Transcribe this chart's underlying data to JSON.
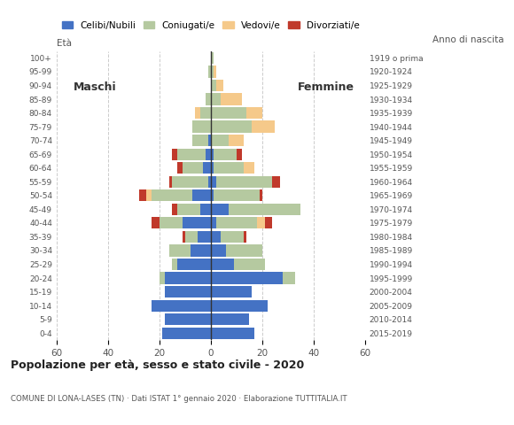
{
  "age_groups": [
    "0-4",
    "5-9",
    "10-14",
    "15-19",
    "20-24",
    "25-29",
    "30-34",
    "35-39",
    "40-44",
    "45-49",
    "50-54",
    "55-59",
    "60-64",
    "65-69",
    "70-74",
    "75-79",
    "80-84",
    "85-89",
    "90-94",
    "95-99",
    "100+"
  ],
  "birth_years": [
    "2015-2019",
    "2010-2014",
    "2005-2009",
    "2000-2004",
    "1995-1999",
    "1990-1994",
    "1985-1989",
    "1980-1984",
    "1975-1979",
    "1970-1974",
    "1965-1969",
    "1960-1964",
    "1955-1959",
    "1950-1954",
    "1945-1949",
    "1940-1944",
    "1935-1939",
    "1930-1934",
    "1925-1929",
    "1920-1924",
    "1919 o prima"
  ],
  "colors": {
    "celibe": "#4472c4",
    "coniugato": "#b5c9a0",
    "vedovo": "#f5c98a",
    "divorziato": "#c0392b"
  },
  "males": {
    "celibe": [
      19,
      18,
      23,
      18,
      18,
      13,
      8,
      5,
      11,
      4,
      7,
      1,
      3,
      2,
      1,
      0,
      0,
      0,
      0,
      0,
      0
    ],
    "coniugato": [
      0,
      0,
      0,
      0,
      2,
      2,
      8,
      5,
      9,
      9,
      16,
      14,
      8,
      11,
      6,
      7,
      4,
      2,
      0,
      1,
      0
    ],
    "vedovo": [
      0,
      0,
      0,
      0,
      0,
      0,
      0,
      0,
      0,
      0,
      2,
      0,
      0,
      0,
      0,
      0,
      2,
      0,
      0,
      0,
      0
    ],
    "divorziato": [
      0,
      0,
      0,
      0,
      0,
      0,
      0,
      1,
      3,
      2,
      3,
      1,
      2,
      2,
      0,
      0,
      0,
      0,
      0,
      0,
      0
    ]
  },
  "females": {
    "celibe": [
      17,
      15,
      22,
      16,
      28,
      9,
      6,
      4,
      2,
      7,
      1,
      2,
      1,
      1,
      0,
      0,
      0,
      0,
      0,
      0,
      0
    ],
    "coniugato": [
      0,
      0,
      0,
      0,
      5,
      12,
      14,
      9,
      16,
      28,
      18,
      22,
      12,
      9,
      7,
      16,
      14,
      4,
      2,
      1,
      1
    ],
    "vedovo": [
      0,
      0,
      0,
      0,
      0,
      0,
      0,
      0,
      3,
      0,
      0,
      0,
      4,
      0,
      6,
      9,
      6,
      8,
      3,
      1,
      0
    ],
    "divorziato": [
      0,
      0,
      0,
      0,
      0,
      0,
      0,
      1,
      3,
      0,
      1,
      3,
      0,
      2,
      0,
      0,
      0,
      0,
      0,
      0,
      0
    ]
  },
  "xlim": 60,
  "xticks": [
    -60,
    -40,
    -20,
    0,
    20,
    40,
    60
  ],
  "xticklabels": [
    "60",
    "40",
    "20",
    "0",
    "20",
    "40",
    "60"
  ],
  "title": "Popolazione per età, sesso e stato civile - 2020",
  "subtitle": "COMUNE DI LONA-LASES (TN) · Dati ISTAT 1° gennaio 2020 · Elaborazione TUTTITALIA.IT",
  "ylabel_left": "Età",
  "ylabel_right": "Anno di nascita",
  "label_maschi": "Maschi",
  "label_femmine": "Femmine",
  "legend_labels": [
    "Celibi/Nubili",
    "Coniugati/e",
    "Vedovi/e",
    "Divorziati/e"
  ],
  "bar_height": 0.85,
  "background_color": "#ffffff",
  "grid_color": "#cccccc"
}
